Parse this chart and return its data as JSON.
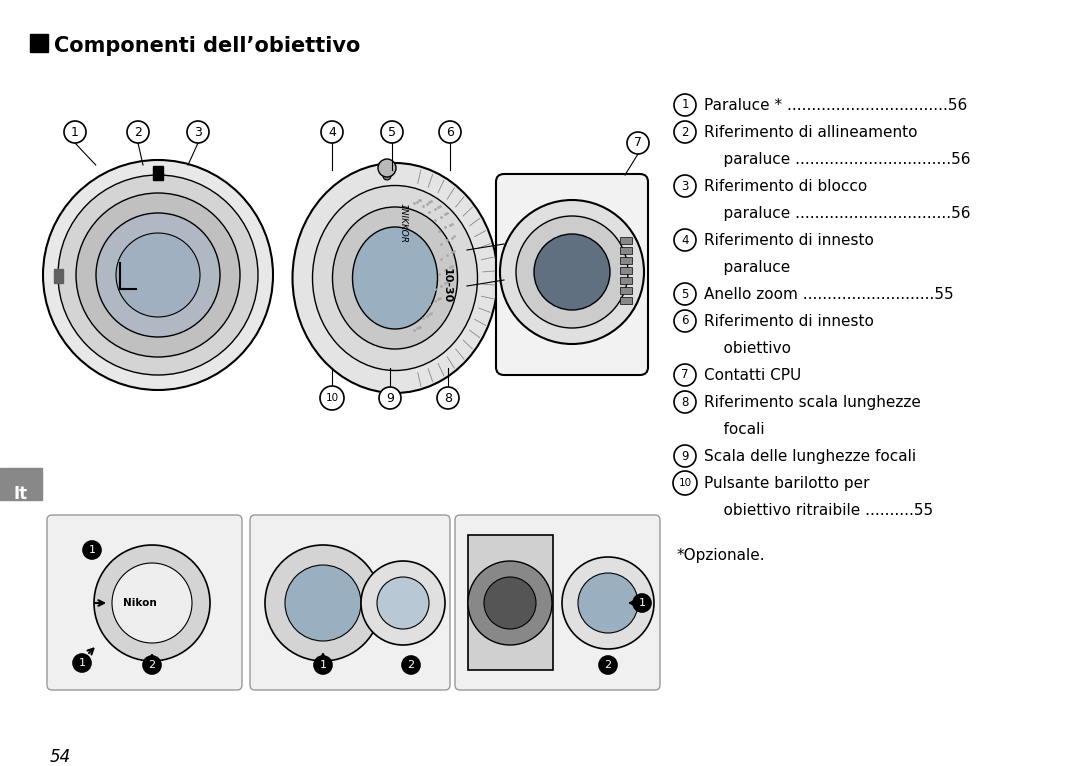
{
  "title": "Componenti dell’obiettivo",
  "page_number": "54",
  "lang_tag": "It",
  "background_color": "#ffffff",
  "text_color": "#000000",
  "footnote": "*Opzionale.",
  "gray_tab_color": "#888888",
  "black_color": "#000000",
  "dark_gray": "#555555",
  "light_gray": "#cccccc",
  "mid_gray": "#aaaaaa",
  "lines_data": [
    [
      true,
      "1",
      "Paraluce * .................................56"
    ],
    [
      true,
      "2",
      "Riferimento di allineamento"
    ],
    [
      false,
      "",
      "    paraluce ................................56"
    ],
    [
      true,
      "3",
      "Riferimento di blocco"
    ],
    [
      false,
      "",
      "    paraluce ................................56"
    ],
    [
      true,
      "4",
      "Riferimento di innesto"
    ],
    [
      false,
      "",
      "    paraluce"
    ],
    [
      true,
      "5",
      "Anello zoom ...........................55"
    ],
    [
      true,
      "6",
      "Riferimento di innesto"
    ],
    [
      false,
      "",
      "    obiettivo"
    ],
    [
      true,
      "7",
      "Contatti CPU"
    ],
    [
      true,
      "8",
      "Riferimento scala lunghezze"
    ],
    [
      false,
      "",
      "    focali"
    ],
    [
      true,
      "9",
      "Scala delle lunghezze focali"
    ],
    [
      true,
      "10",
      "Pulsante barilotto per"
    ],
    [
      false,
      "",
      "    obiettivo ritraibile ..........55"
    ]
  ]
}
